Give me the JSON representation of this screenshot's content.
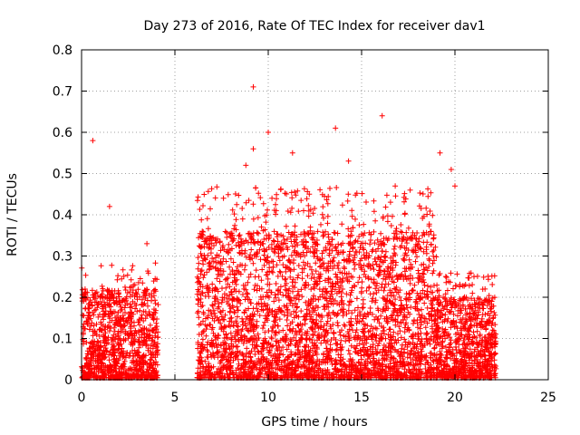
{
  "chart_data": {
    "type": "scatter",
    "title": "Day 273 of 2016, Rate Of TEC Index for receiver dav1",
    "xlabel": "GPS time / hours",
    "ylabel": "ROTI / TECUs",
    "xlim": [
      0,
      25
    ],
    "ylim": [
      0,
      0.8
    ],
    "xticks": [
      0,
      5,
      10,
      15,
      20,
      25
    ],
    "yticks": [
      0,
      0.1,
      0.2,
      0.3,
      0.4,
      0.5,
      0.6,
      0.7,
      0.8
    ],
    "xtick_labels": [
      "0",
      "5",
      "10",
      "15",
      "20",
      "25"
    ],
    "ytick_labels": [
      "0",
      "0.1",
      "0.2",
      "0.3",
      "0.4",
      "0.5",
      "0.6",
      "0.7",
      "0.8"
    ],
    "grid": true,
    "marker": "+",
    "color": "#ff0000",
    "segments": [
      {
        "x_start": 0.0,
        "x_end": 4.1,
        "typical_max": 0.22
      },
      {
        "x_start": 6.2,
        "x_end": 19.0,
        "typical_max": 0.36
      },
      {
        "x_start": 19.0,
        "x_end": 22.2,
        "typical_max": 0.2
      }
    ],
    "notable_points": [
      {
        "x": 0.6,
        "y": 0.58
      },
      {
        "x": 9.2,
        "y": 0.71
      },
      {
        "x": 10.0,
        "y": 0.6
      },
      {
        "x": 9.2,
        "y": 0.56
      },
      {
        "x": 11.3,
        "y": 0.55
      },
      {
        "x": 13.6,
        "y": 0.61
      },
      {
        "x": 14.3,
        "y": 0.53
      },
      {
        "x": 16.1,
        "y": 0.64
      },
      {
        "x": 19.2,
        "y": 0.55
      },
      {
        "x": 19.8,
        "y": 0.51
      },
      {
        "x": 1.5,
        "y": 0.42
      },
      {
        "x": 3.5,
        "y": 0.33
      },
      {
        "x": 7.6,
        "y": 0.44
      },
      {
        "x": 8.8,
        "y": 0.52
      },
      {
        "x": 10.2,
        "y": 0.44
      },
      {
        "x": 12.2,
        "y": 0.45
      },
      {
        "x": 16.8,
        "y": 0.47
      },
      {
        "x": 17.6,
        "y": 0.46
      },
      {
        "x": 20.0,
        "y": 0.47
      },
      {
        "x": 22.0,
        "y": 0.09
      }
    ]
  }
}
